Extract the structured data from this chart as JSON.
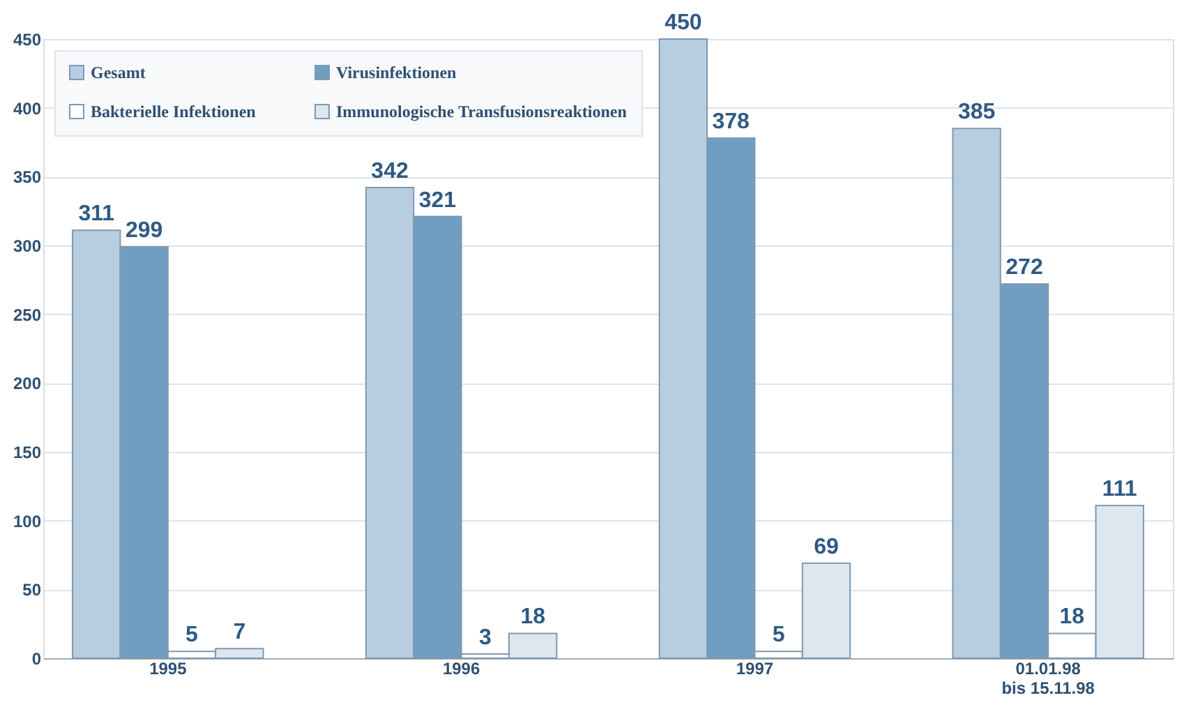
{
  "chart_data": {
    "type": "bar",
    "categories": [
      "1995",
      "1996",
      "1997",
      "01.01.98\nbis 15.11.98"
    ],
    "series": [
      {
        "name": "Gesamt",
        "color": "#b7cde0",
        "values": [
          311,
          342,
          450,
          385
        ]
      },
      {
        "name": "Virusinfektionen",
        "color": "#6f9ec2",
        "values": [
          299,
          321,
          378,
          272
        ]
      },
      {
        "name": "Bakterielle Infektionen",
        "color": "#ffffff",
        "values": [
          5,
          3,
          5,
          18
        ]
      },
      {
        "name": "Immunologische Transfusionsreaktionen",
        "color": "#dce7f0",
        "values": [
          7,
          18,
          69,
          111
        ]
      }
    ],
    "ylim": [
      0,
      450
    ],
    "yticks": [
      0,
      50,
      100,
      150,
      200,
      250,
      300,
      350,
      400,
      450
    ],
    "grid": "y",
    "legend": "top left",
    "data_labels": true
  }
}
